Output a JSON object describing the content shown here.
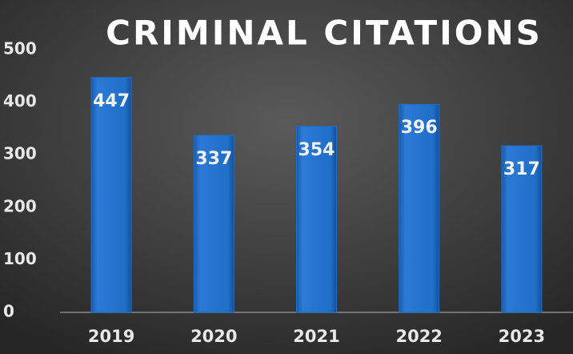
{
  "chart_data": {
    "type": "bar",
    "title": "CRIMINAL CITATIONS",
    "categories": [
      "2019",
      "2020",
      "2021",
      "2022",
      "2023"
    ],
    "values": [
      447,
      337,
      354,
      396,
      317
    ],
    "color": "#1f6fc8",
    "ylim": [
      0,
      500
    ],
    "yticks": [
      0,
      100,
      200,
      300,
      400,
      500
    ],
    "grid": false
  }
}
